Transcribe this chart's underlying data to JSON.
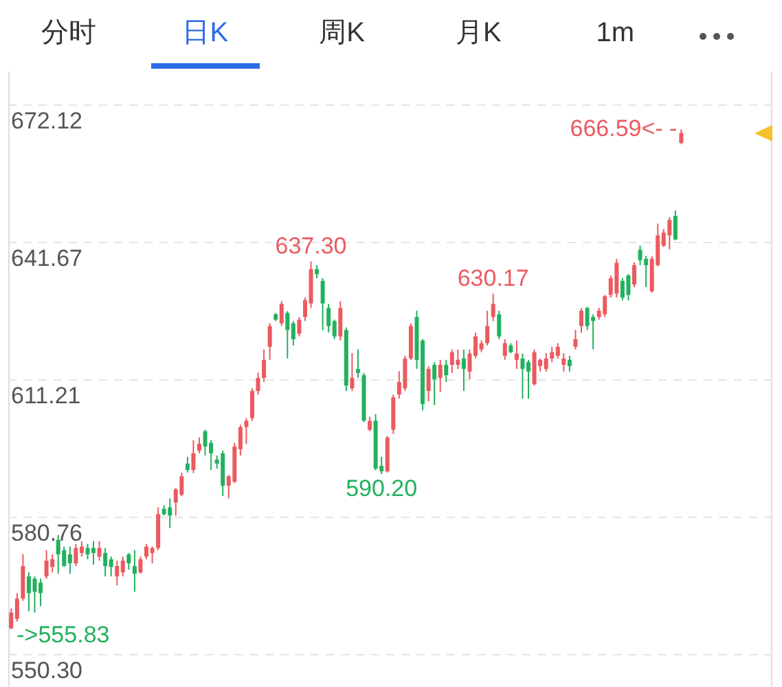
{
  "chart_data": {
    "type": "candlestick",
    "annotations": [
      "分时",
      "日K",
      "周K",
      "月K",
      "1m",
      {
        "text": "637.30",
        "y": 637.3
      },
      {
        "text": "630.17",
        "y": 630.17
      },
      {
        "text": "590.20",
        "y": 590.2
      },
      "666.59<- -",
      "->555.83"
    ],
    "categories": [
      null,
      null,
      null,
      null,
      null,
      null,
      null,
      null,
      null,
      null,
      null,
      null,
      null,
      null,
      null,
      null,
      null,
      null,
      null,
      null,
      null,
      null,
      null,
      null,
      null,
      null,
      null,
      null,
      null,
      null,
      null,
      null,
      null,
      null,
      null,
      null,
      null,
      null,
      null,
      null,
      null,
      null,
      null,
      null,
      null,
      null,
      null,
      null,
      null,
      null,
      null,
      null,
      null,
      null,
      null,
      null,
      null,
      null,
      null,
      null,
      null,
      null,
      null,
      null,
      null,
      null,
      null,
      null,
      null,
      null,
      null,
      null,
      null,
      null,
      null,
      null,
      null,
      null,
      null,
      null,
      null,
      null,
      null,
      null,
      null,
      null,
      null,
      null,
      null,
      null,
      null,
      null,
      null,
      null,
      null,
      null,
      null,
      null,
      null,
      null,
      null,
      null,
      null,
      null,
      null,
      null,
      null,
      null,
      null,
      null,
      null,
      null,
      null,
      null,
      null,
      null,
      null,
      null,
      null,
      null,
      null,
      null,
      null,
      null,
      null,
      null,
      null,
      null,
      null,
      null
    ],
    "ohlc": [
      [
        556.0,
        560.4,
        555.83,
        559.5
      ],
      [
        558.1,
        563.8,
        557.5,
        562.6
      ],
      [
        562.6,
        572.4,
        562.1,
        569.8
      ],
      [
        567.5,
        568.4,
        559.8,
        563.8
      ],
      [
        567.0,
        567.5,
        559.5,
        564.1
      ],
      [
        566.1,
        567.0,
        560.9,
        563.8
      ],
      [
        567.5,
        573.3,
        567.0,
        571.0
      ],
      [
        569.6,
        572.4,
        568.4,
        571.3
      ],
      [
        575.6,
        576.7,
        568.1,
        572.4
      ],
      [
        573.3,
        574.1,
        569.6,
        569.8
      ],
      [
        572.4,
        574.1,
        568.1,
        570.4
      ],
      [
        570.4,
        574.7,
        569.8,
        573.8
      ],
      [
        572.7,
        575.3,
        571.9,
        574.1
      ],
      [
        573.8,
        574.7,
        571.3,
        572.4
      ],
      [
        573.8,
        575.3,
        570.1,
        572.7
      ],
      [
        571.9,
        575.3,
        571.0,
        573.8
      ],
      [
        572.7,
        573.8,
        567.5,
        569.8
      ],
      [
        571.3,
        571.9,
        567.5,
        569.6
      ],
      [
        567.5,
        571.0,
        565.5,
        569.8
      ],
      [
        568.4,
        571.9,
        567.5,
        571.0
      ],
      [
        572.4,
        572.7,
        569.0,
        570.4
      ],
      [
        569.8,
        573.3,
        564.1,
        568.1
      ],
      [
        568.4,
        571.9,
        568.1,
        571.3
      ],
      [
        571.9,
        574.7,
        571.3,
        574.1
      ],
      [
        572.7,
        574.1,
        570.4,
        573.8
      ],
      [
        573.8,
        582.8,
        573.3,
        581.3
      ],
      [
        582.5,
        583.3,
        581.0,
        581.3
      ],
      [
        582.8,
        584.8,
        578.2,
        581.0
      ],
      [
        583.9,
        587.1,
        581.0,
        586.8
      ],
      [
        585.6,
        590.5,
        585.3,
        589.7
      ],
      [
        592.5,
        594.0,
        590.5,
        591.1
      ],
      [
        591.1,
        597.7,
        590.4,
        594.8
      ],
      [
        595.4,
        598.3,
        594.8,
        596.9
      ],
      [
        599.7,
        600.0,
        594.3,
        596.3
      ],
      [
        597.1,
        597.7,
        591.1,
        594.8
      ],
      [
        593.4,
        594.3,
        591.4,
        592.5
      ],
      [
        594.8,
        595.4,
        585.3,
        587.6
      ],
      [
        587.6,
        590.0,
        584.8,
        589.7
      ],
      [
        588.5,
        597.1,
        588.2,
        596.3
      ],
      [
        595.7,
        601.1,
        594.3,
        600.6
      ],
      [
        600.6,
        602.6,
        596.9,
        602.0
      ],
      [
        602.6,
        609.2,
        602.0,
        608.6
      ],
      [
        608.6,
        612.7,
        607.8,
        611.5
      ],
      [
        611.5,
        617.8,
        610.6,
        615.5
      ],
      [
        618.4,
        623.6,
        615.5,
        623.0
      ],
      [
        625.6,
        625.9,
        624.1,
        624.4
      ],
      [
        623.6,
        628.5,
        623.0,
        627.9
      ],
      [
        625.9,
        626.3,
        615.8,
        622.1
      ],
      [
        623.6,
        624.1,
        618.7,
        620.1
      ],
      [
        621.3,
        625.0,
        620.7,
        624.4
      ],
      [
        625.0,
        629.3,
        624.1,
        628.7
      ],
      [
        628.0,
        637.3,
        627.0,
        635.6
      ],
      [
        635.6,
        636.5,
        633.6,
        634.5
      ],
      [
        633.0,
        633.6,
        622.1,
        628.0
      ],
      [
        627.0,
        627.9,
        621.6,
        623.0
      ],
      [
        624.1,
        624.4,
        620.1,
        620.7
      ],
      [
        620.7,
        628.5,
        619.8,
        627.0
      ],
      [
        622.1,
        622.7,
        608.6,
        609.8
      ],
      [
        609.2,
        617.0,
        608.6,
        611.5
      ],
      [
        613.5,
        617.8,
        611.5,
        612.6
      ],
      [
        612.1,
        612.6,
        601.7,
        602.0
      ],
      [
        600.0,
        602.9,
        599.7,
        602.0
      ],
      [
        602.0,
        603.5,
        591.0,
        591.4
      ],
      [
        592.0,
        594.0,
        590.2,
        590.8
      ],
      [
        590.8,
        598.6,
        590.5,
        598.3
      ],
      [
        600.0,
        607.8,
        599.1,
        607.2
      ],
      [
        607.8,
        613.0,
        606.9,
        610.6
      ],
      [
        609.2,
        616.4,
        608.6,
        615.8
      ],
      [
        615.8,
        623.6,
        615.5,
        623.0
      ],
      [
        625.0,
        626.4,
        613.5,
        615.5
      ],
      [
        619.8,
        620.1,
        604.3,
        605.7
      ],
      [
        608.6,
        614.1,
        606.3,
        613.5
      ],
      [
        614.4,
        615.0,
        605.5,
        611.2
      ],
      [
        611.5,
        615.5,
        608.4,
        614.4
      ],
      [
        614.4,
        615.5,
        610.6,
        612.1
      ],
      [
        614.4,
        617.8,
        612.6,
        617.2
      ],
      [
        614.4,
        617.8,
        613.5,
        615.5
      ],
      [
        615.8,
        617.8,
        608.6,
        613.5
      ],
      [
        612.9,
        617.8,
        611.2,
        616.9
      ],
      [
        616.4,
        621.5,
        615.8,
        620.7
      ],
      [
        617.8,
        619.8,
        617.2,
        619.2
      ],
      [
        619.2,
        626.4,
        618.7,
        623.0
      ],
      [
        625.0,
        630.17,
        624.1,
        627.9
      ],
      [
        625.6,
        626.4,
        620.1,
        620.7
      ],
      [
        616.4,
        620.1,
        615.5,
        619.2
      ],
      [
        618.7,
        619.2,
        617.0,
        617.2
      ],
      [
        615.5,
        619.8,
        613.5,
        616.9
      ],
      [
        615.8,
        616.9,
        606.9,
        613.5
      ],
      [
        615.0,
        615.5,
        606.9,
        612.9
      ],
      [
        610.1,
        617.8,
        609.8,
        617.2
      ],
      [
        614.1,
        615.8,
        612.9,
        615.5
      ],
      [
        613.5,
        617.0,
        612.9,
        615.8
      ],
      [
        615.8,
        618.4,
        615.0,
        617.2
      ],
      [
        616.4,
        619.2,
        615.8,
        618.4
      ],
      [
        614.4,
        617.0,
        612.9,
        615.8
      ],
      [
        615.5,
        616.4,
        612.9,
        614.1
      ],
      [
        618.4,
        622.1,
        617.8,
        620.1
      ],
      [
        623.0,
        627.0,
        621.5,
        626.4
      ],
      [
        627.0,
        627.3,
        622.1,
        623.0
      ],
      [
        625.0,
        625.6,
        617.8,
        624.1
      ],
      [
        625.0,
        627.0,
        624.4,
        626.4
      ],
      [
        625.6,
        629.9,
        625.0,
        629.6
      ],
      [
        629.9,
        634.2,
        629.3,
        633.6
      ],
      [
        630.2,
        637.9,
        629.3,
        637.0
      ],
      [
        633.0,
        633.6,
        628.7,
        629.3
      ],
      [
        634.2,
        634.5,
        628.7,
        629.9
      ],
      [
        632.2,
        637.1,
        631.6,
        636.5
      ],
      [
        639.9,
        640.8,
        636.5,
        637.6
      ],
      [
        637.9,
        638.5,
        631.6,
        636.5
      ],
      [
        630.7,
        638.5,
        630.4,
        637.9
      ],
      [
        636.5,
        645.7,
        636.2,
        643.1
      ],
      [
        640.8,
        644.5,
        640.5,
        643.7
      ],
      [
        643.1,
        647.1,
        640.0,
        646.5
      ],
      [
        647.4,
        648.6,
        642.0,
        642.2
      ],
      [
        663.6,
        666.59,
        663.3,
        665.8
      ],
      null,
      null,
      null,
      null,
      null,
      null,
      null,
      null,
      null,
      null,
      null,
      null,
      null,
      null,
      null
    ],
    "colors": [
      "#eb5a5f",
      "#eb5a5f",
      "#eb5a5f",
      "#22b15e",
      "#22b15e",
      "#22b15e",
      "#eb5a5f",
      "#eb5a5f",
      "#22b15e",
      "#22b15e",
      "#22b15e",
      "#eb5a5f",
      "#eb5a5f",
      "#22b15e",
      "#22b15e",
      "#eb5a5f",
      "#22b15e",
      "#22b15e",
      "#eb5a5f",
      "#eb5a5f",
      "#22b15e",
      "#22b15e",
      "#eb5a5f",
      "#eb5a5f",
      "#eb5a5f",
      "#eb5a5f",
      "#22b15e",
      "#22b15e",
      "#eb5a5f",
      "#eb5a5f",
      "#22b15e",
      "#eb5a5f",
      "#eb5a5f",
      "#22b15e",
      "#22b15e",
      "#22b15e",
      "#22b15e",
      "#eb5a5f",
      "#eb5a5f",
      "#eb5a5f",
      "#eb5a5f",
      "#eb5a5f",
      "#eb5a5f",
      "#eb5a5f",
      "#eb5a5f",
      "#22b15e",
      "#eb5a5f",
      "#22b15e",
      "#22b15e",
      "#eb5a5f",
      "#eb5a5f",
      "#eb5a5f",
      "#22b15e",
      "#22b15e",
      "#22b15e",
      "#22b15e",
      "#eb5a5f",
      "#22b15e",
      "#eb5a5f",
      "#22b15e",
      "#22b15e",
      "#eb5a5f",
      "#22b15e",
      "#22b15e",
      "#eb5a5f",
      "#eb5a5f",
      "#eb5a5f",
      "#eb5a5f",
      "#eb5a5f",
      "#22b15e",
      "#22b15e",
      "#eb5a5f",
      "#22b15e",
      "#eb5a5f",
      "#22b15e",
      "#eb5a5f",
      "#eb5a5f",
      "#22b15e",
      "#eb5a5f",
      "#eb5a5f",
      "#eb5a5f",
      "#eb5a5f",
      "#eb5a5f",
      "#22b15e",
      "#eb5a5f",
      "#22b15e",
      "#eb5a5f",
      "#22b15e",
      "#22b15e",
      "#eb5a5f",
      "#eb5a5f",
      "#eb5a5f",
      "#eb5a5f",
      "#eb5a5f",
      "#eb5a5f",
      "#22b15e",
      "#eb5a5f",
      "#eb5a5f",
      "#22b15e",
      "#22b15e",
      "#eb5a5f",
      "#eb5a5f",
      "#eb5a5f",
      "#eb5a5f",
      "#22b15e",
      "#22b15e",
      "#eb5a5f",
      "#22b15e",
      "#22b15e",
      "#eb5a5f",
      "#eb5a5f",
      "#eb5a5f",
      "#eb5a5f",
      "#22b15e",
      "#eb5a5f",
      null,
      null,
      null,
      null,
      null,
      null,
      null,
      null,
      null,
      null,
      null,
      null,
      null,
      null,
      null
    ],
    "ylim": [
      550.3,
      672.12
    ],
    "yticks": [
      {
        "value": 550.3,
        "label": "550.30"
      },
      580.76,
      611.21,
      641.67,
      672.12
    ],
    "grid": "y",
    "tick_labels": "y"
  }
}
